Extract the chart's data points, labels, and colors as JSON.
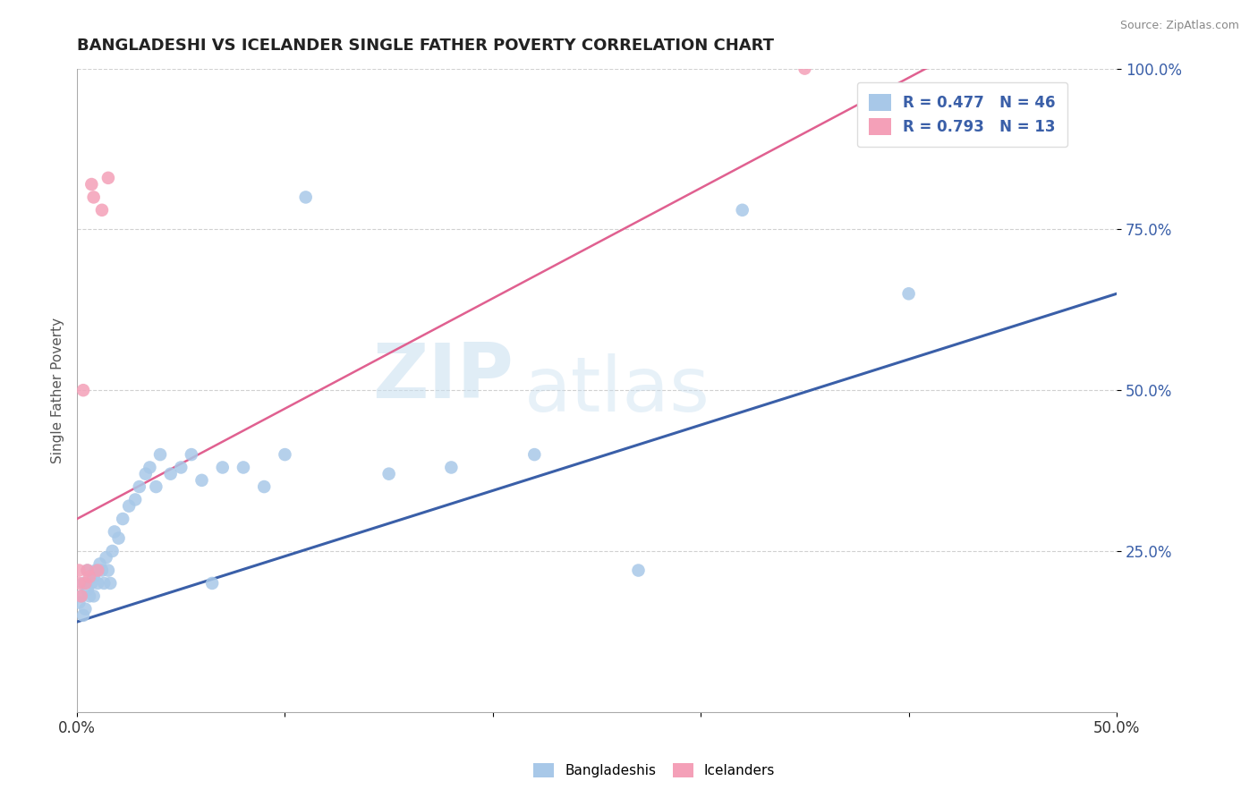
{
  "title": "BANGLADESHI VS ICELANDER SINGLE FATHER POVERTY CORRELATION CHART",
  "source": "Source: ZipAtlas.com",
  "ylabel": "Single Father Poverty",
  "xlim": [
    0,
    0.5
  ],
  "ylim": [
    0,
    1.0
  ],
  "xtick_positions": [
    0,
    0.1,
    0.2,
    0.3,
    0.4,
    0.5
  ],
  "xtick_labels": [
    "0.0%",
    "",
    "",
    "",
    "",
    "50.0%"
  ],
  "ytick_positions": [
    0.25,
    0.5,
    0.75,
    1.0
  ],
  "ytick_labels": [
    "25.0%",
    "50.0%",
    "75.0%",
    "100.0%"
  ],
  "blue_scatter_color": "#A8C8E8",
  "pink_scatter_color": "#F4A0B8",
  "blue_line_color": "#3A5FA8",
  "pink_line_color": "#E06090",
  "legend_text_color": "#3A5FA8",
  "r_blue": 0.477,
  "n_blue": 46,
  "r_pink": 0.793,
  "n_pink": 13,
  "watermark_zip": "ZIP",
  "watermark_atlas": "atlas",
  "title_color": "#222222",
  "ylabel_color": "#555555",
  "ytick_color": "#3A5FA8",
  "xtick_color": "#333333",
  "grid_color": "#cccccc",
  "source_color": "#888888",
  "bangladeshi_x": [
    0.001,
    0.002,
    0.003,
    0.003,
    0.004,
    0.005,
    0.005,
    0.006,
    0.007,
    0.008,
    0.008,
    0.009,
    0.01,
    0.011,
    0.012,
    0.013,
    0.014,
    0.015,
    0.016,
    0.017,
    0.018,
    0.02,
    0.022,
    0.025,
    0.028,
    0.03,
    0.033,
    0.035,
    0.038,
    0.04,
    0.045,
    0.05,
    0.055,
    0.06,
    0.065,
    0.07,
    0.08,
    0.09,
    0.1,
    0.11,
    0.15,
    0.18,
    0.22,
    0.27,
    0.32,
    0.4
  ],
  "bangladeshi_y": [
    0.17,
    0.18,
    0.15,
    0.2,
    0.16,
    0.19,
    0.22,
    0.18,
    0.2,
    0.21,
    0.18,
    0.22,
    0.2,
    0.23,
    0.22,
    0.2,
    0.24,
    0.22,
    0.2,
    0.25,
    0.28,
    0.27,
    0.3,
    0.32,
    0.33,
    0.35,
    0.37,
    0.38,
    0.35,
    0.4,
    0.37,
    0.38,
    0.4,
    0.36,
    0.2,
    0.38,
    0.38,
    0.35,
    0.4,
    0.8,
    0.37,
    0.38,
    0.4,
    0.22,
    0.78,
    0.65
  ],
  "icelander_x": [
    0.001,
    0.001,
    0.002,
    0.003,
    0.004,
    0.005,
    0.006,
    0.007,
    0.008,
    0.01,
    0.012,
    0.015,
    0.35
  ],
  "icelander_y": [
    0.2,
    0.22,
    0.18,
    0.5,
    0.2,
    0.22,
    0.21,
    0.82,
    0.8,
    0.22,
    0.78,
    0.83,
    1.0
  ],
  "blue_line_x0": 0.0,
  "blue_line_y0": 0.14,
  "blue_line_x1": 0.5,
  "blue_line_y1": 0.65,
  "pink_line_x0": 0.0,
  "pink_line_y0": 0.3,
  "pink_line_x1": 0.42,
  "pink_line_y1": 1.02
}
